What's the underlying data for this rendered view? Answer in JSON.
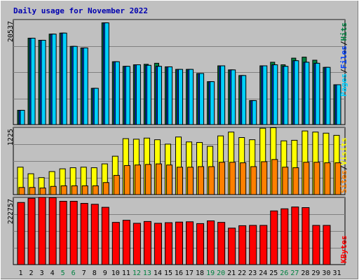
{
  "title": "Daily usage for November 2022",
  "colors": {
    "background": "#c0c0c0",
    "title_text": "#0000b0",
    "hits": "#008040",
    "files": "#0040ff",
    "pages": "#00d0ff",
    "visits": "#ffff00",
    "sites": "#ff8000",
    "kbytes": "#ff0000",
    "weekend_label": "#008040",
    "weekday_label": "#000000"
  },
  "chart_data": [
    {
      "type": "bar",
      "panel": "hits-files-pages",
      "y_tick_label": "20537",
      "ylim": [
        0,
        20537
      ],
      "grid": true,
      "legend": [
        {
          "name": "Pages",
          "color_key": "pages"
        },
        {
          "name": "/",
          "color_key": "weekday_label"
        },
        {
          "name": "Files",
          "color_key": "files"
        },
        {
          "name": "/",
          "color_key": "weekday_label"
        },
        {
          "name": "Hits",
          "color_key": "hits"
        }
      ],
      "categories": [
        "1",
        "2",
        "3",
        "4",
        "5",
        "6",
        "7",
        "8",
        "9",
        "10",
        "11",
        "12",
        "13",
        "14",
        "15",
        "16",
        "17",
        "18",
        "19",
        "20",
        "21",
        "22",
        "23",
        "24",
        "25",
        "26",
        "27",
        "28",
        "29",
        "30",
        "31"
      ],
      "series": [
        {
          "name": "Hits",
          "color_key": "hits",
          "values": [
            2800,
            16900,
            16500,
            17700,
            17900,
            15300,
            15000,
            7100,
            19900,
            12300,
            11400,
            11700,
            11800,
            12000,
            11300,
            10800,
            10800,
            10000,
            8400,
            11500,
            10700,
            9600,
            4700,
            11500,
            12200,
            11700,
            13000,
            13200,
            12600,
            11200,
            7800
          ]
        },
        {
          "name": "Files",
          "color_key": "files",
          "values": [
            2800,
            16900,
            16500,
            17700,
            17900,
            15300,
            15000,
            7100,
            19900,
            12300,
            11400,
            11700,
            11600,
            11400,
            11300,
            10800,
            10800,
            10000,
            8400,
            11500,
            10700,
            9600,
            4700,
            11500,
            11700,
            11400,
            12500,
            12200,
            12000,
            11200,
            7800
          ]
        },
        {
          "name": "Pages",
          "color_key": "pages",
          "values": [
            2800,
            16900,
            16500,
            17700,
            17900,
            15300,
            15000,
            7100,
            19900,
            12300,
            11400,
            11700,
            11600,
            11400,
            11300,
            10800,
            10800,
            10000,
            8400,
            11500,
            10700,
            9600,
            4700,
            11500,
            11700,
            11400,
            12500,
            12200,
            12000,
            11200,
            7800
          ]
        }
      ]
    },
    {
      "type": "bar",
      "panel": "visits-sites",
      "y_tick_label": "1225",
      "ylim": [
        0,
        1225
      ],
      "grid": true,
      "legend": [
        {
          "name": "Sites",
          "color_key": "sites"
        },
        {
          "name": "/",
          "color_key": "weekday_label"
        },
        {
          "name": "Visits",
          "color_key": "visits"
        }
      ],
      "categories": [
        "1",
        "2",
        "3",
        "4",
        "5",
        "6",
        "7",
        "8",
        "9",
        "10",
        "11",
        "12",
        "13",
        "14",
        "15",
        "16",
        "17",
        "18",
        "19",
        "20",
        "21",
        "22",
        "23",
        "24",
        "25",
        "26",
        "27",
        "28",
        "29",
        "30",
        "31"
      ],
      "series": [
        {
          "name": "Visits",
          "color_key": "visits",
          "values": [
            500,
            380,
            310,
            420,
            470,
            490,
            500,
            490,
            560,
            700,
            1020,
            1010,
            1030,
            1000,
            920,
            1050,
            960,
            950,
            880,
            1070,
            1140,
            1040,
            1000,
            1210,
            1220,
            980,
            990,
            1160,
            1140,
            1120,
            1080
          ]
        },
        {
          "name": "Sites",
          "color_key": "sites",
          "values": [
            130,
            130,
            120,
            150,
            160,
            160,
            160,
            160,
            220,
            350,
            530,
            540,
            550,
            560,
            540,
            500,
            500,
            510,
            510,
            590,
            590,
            580,
            510,
            600,
            640,
            500,
            490,
            590,
            590,
            580,
            580
          ]
        }
      ]
    },
    {
      "type": "bar",
      "panel": "kbytes",
      "y_tick_label": "222757",
      "ylim": [
        0,
        222757
      ],
      "grid": true,
      "legend": [
        {
          "name": "KBytes",
          "color_key": "kbytes"
        }
      ],
      "categories": [
        "1",
        "2",
        "3",
        "4",
        "5",
        "6",
        "7",
        "8",
        "9",
        "10",
        "11",
        "12",
        "13",
        "14",
        "15",
        "16",
        "17",
        "18",
        "19",
        "20",
        "21",
        "22",
        "23",
        "24",
        "25",
        "26",
        "27",
        "28",
        "29",
        "30",
        "31"
      ],
      "series": [
        {
          "name": "KBytes",
          "color_key": "kbytes",
          "values": [
            206000,
            220000,
            223000,
            222000,
            210000,
            210000,
            203000,
            200000,
            190000,
            140000,
            147000,
            137000,
            143000,
            137000,
            139000,
            141000,
            142000,
            136000,
            145000,
            140000,
            121000,
            129000,
            130000,
            130000,
            178000,
            185000,
            191000,
            189000,
            130000,
            130000,
            0
          ]
        }
      ]
    }
  ],
  "x_axis": {
    "labels": [
      "1",
      "2",
      "3",
      "4",
      "5",
      "6",
      "7",
      "8",
      "9",
      "10",
      "11",
      "12",
      "13",
      "14",
      "15",
      "16",
      "17",
      "18",
      "19",
      "20",
      "21",
      "22",
      "23",
      "24",
      "25",
      "26",
      "27",
      "28",
      "29",
      "30",
      "31"
    ],
    "weekend": [
      5,
      6,
      12,
      13,
      19,
      20,
      26,
      27
    ]
  }
}
